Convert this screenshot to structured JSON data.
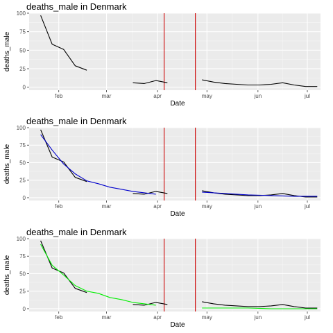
{
  "chart_data": [
    {
      "type": "line",
      "title": "deaths_male in Denmark",
      "xlabel": "Date",
      "ylabel": "deaths_male",
      "ylim": [
        -4,
        100
      ],
      "yticks": [
        0,
        25,
        50,
        75,
        100
      ],
      "xlim": [
        "2020-01-14",
        "2020-07-09"
      ],
      "xticks": [
        {
          "label": "feb",
          "date": "2020-02-01"
        },
        {
          "label": "mar",
          "date": "2020-03-01"
        },
        {
          "label": "apr",
          "date": "2020-04-01"
        },
        {
          "label": "may",
          "date": "2020-05-01"
        },
        {
          "label": "jun",
          "date": "2020-06-01"
        },
        {
          "label": "jul",
          "date": "2020-07-01"
        }
      ],
      "vlines": [
        "2020-04-05",
        "2020-04-24"
      ],
      "colors": {
        "observed": "#000000",
        "vline": "#cc0000"
      },
      "series": [
        {
          "values": [
            {
              "x": "2020-01-21",
              "y": 97
            },
            {
              "x": "2020-01-28",
              "y": 58
            },
            {
              "x": "2020-02-04",
              "y": 51
            },
            {
              "x": "2020-02-11",
              "y": 29
            },
            {
              "x": "2020-02-18",
              "y": 23
            }
          ]
        },
        {
          "values": [
            {
              "x": "2020-03-17",
              "y": 6
            },
            {
              "x": "2020-03-24",
              "y": 5
            },
            {
              "x": "2020-03-31",
              "y": 9
            },
            {
              "x": "2020-04-07",
              "y": 6
            }
          ]
        },
        {
          "values": [
            {
              "x": "2020-04-28",
              "y": 10
            },
            {
              "x": "2020-05-05",
              "y": 7
            },
            {
              "x": "2020-05-12",
              "y": 5
            },
            {
              "x": "2020-05-19",
              "y": 4
            },
            {
              "x": "2020-05-26",
              "y": 3
            },
            {
              "x": "2020-06-02",
              "y": 3
            },
            {
              "x": "2020-06-09",
              "y": 4
            },
            {
              "x": "2020-06-16",
              "y": 6
            },
            {
              "x": "2020-06-23",
              "y": 3
            },
            {
              "x": "2020-06-30",
              "y": 1
            },
            {
              "x": "2020-07-07",
              "y": 1
            }
          ]
        }
      ]
    },
    {
      "type": "line",
      "title": "deaths_male in Denmark",
      "xlabel": "Date",
      "ylabel": "deaths_male",
      "ylim": [
        -4,
        100
      ],
      "yticks": [
        0,
        25,
        50,
        75,
        100
      ],
      "xlim": [
        "2020-01-14",
        "2020-07-09"
      ],
      "xticks": [
        {
          "label": "feb",
          "date": "2020-02-01"
        },
        {
          "label": "mar",
          "date": "2020-03-01"
        },
        {
          "label": "apr",
          "date": "2020-04-01"
        },
        {
          "label": "may",
          "date": "2020-05-01"
        },
        {
          "label": "jun",
          "date": "2020-06-01"
        },
        {
          "label": "jul",
          "date": "2020-07-01"
        }
      ],
      "vlines": [
        "2020-04-05",
        "2020-04-24"
      ],
      "colors": {
        "observed": "#000000",
        "fit": "#0000cc",
        "vline": "#cc0000"
      },
      "series": [
        {
          "values": [
            {
              "x": "2020-01-21",
              "y": 97
            },
            {
              "x": "2020-01-28",
              "y": 58
            },
            {
              "x": "2020-02-04",
              "y": 51
            },
            {
              "x": "2020-02-11",
              "y": 29
            },
            {
              "x": "2020-02-18",
              "y": 23
            }
          ]
        },
        {
          "values": [
            {
              "x": "2020-03-17",
              "y": 6
            },
            {
              "x": "2020-03-24",
              "y": 5
            },
            {
              "x": "2020-03-31",
              "y": 9
            },
            {
              "x": "2020-04-07",
              "y": 6
            }
          ]
        },
        {
          "values": [
            {
              "x": "2020-04-28",
              "y": 10
            },
            {
              "x": "2020-05-05",
              "y": 7
            },
            {
              "x": "2020-05-12",
              "y": 5
            },
            {
              "x": "2020-05-19",
              "y": 4
            },
            {
              "x": "2020-05-26",
              "y": 3
            },
            {
              "x": "2020-06-02",
              "y": 3
            },
            {
              "x": "2020-06-09",
              "y": 4
            },
            {
              "x": "2020-06-16",
              "y": 6
            },
            {
              "x": "2020-06-23",
              "y": 3
            },
            {
              "x": "2020-06-30",
              "y": 1
            },
            {
              "x": "2020-07-07",
              "y": 1
            }
          ]
        },
        {
          "role": "fit",
          "values": [
            {
              "x": "2020-01-21",
              "y": 90
            },
            {
              "x": "2020-01-28",
              "y": 68
            },
            {
              "x": "2020-02-04",
              "y": 48
            },
            {
              "x": "2020-02-11",
              "y": 34
            },
            {
              "x": "2020-02-18",
              "y": 24
            },
            {
              "x": "2020-02-25",
              "y": 20
            },
            {
              "x": "2020-03-03",
              "y": 15
            },
            {
              "x": "2020-03-10",
              "y": 12
            },
            {
              "x": "2020-03-17",
              "y": 9
            },
            {
              "x": "2020-03-24",
              "y": 7
            },
            {
              "x": "2020-03-31",
              "y": 5
            }
          ]
        },
        {
          "role": "fit",
          "values": [
            {
              "x": "2020-04-28",
              "y": 8
            },
            {
              "x": "2020-05-12",
              "y": 6
            },
            {
              "x": "2020-05-26",
              "y": 4
            },
            {
              "x": "2020-06-09",
              "y": 3
            },
            {
              "x": "2020-06-23",
              "y": 2
            },
            {
              "x": "2020-07-07",
              "y": 2
            }
          ]
        }
      ]
    },
    {
      "type": "line",
      "title": "deaths_male in Denmark",
      "xlabel": "Date",
      "ylabel": "deaths_male",
      "ylim": [
        -4,
        100
      ],
      "yticks": [
        0,
        25,
        50,
        75,
        100
      ],
      "xlim": [
        "2020-01-14",
        "2020-07-09"
      ],
      "xticks": [
        {
          "label": "feb",
          "date": "2020-02-01"
        },
        {
          "label": "mar",
          "date": "2020-03-01"
        },
        {
          "label": "apr",
          "date": "2020-04-01"
        },
        {
          "label": "may",
          "date": "2020-05-01"
        },
        {
          "label": "jun",
          "date": "2020-06-01"
        },
        {
          "label": "jul",
          "date": "2020-07-01"
        }
      ],
      "vlines": [
        "2020-04-05",
        "2020-04-24"
      ],
      "colors": {
        "observed": "#000000",
        "fit": "#00ee00",
        "vline": "#cc0000"
      },
      "series": [
        {
          "values": [
            {
              "x": "2020-01-21",
              "y": 97
            },
            {
              "x": "2020-01-28",
              "y": 58
            },
            {
              "x": "2020-02-04",
              "y": 51
            },
            {
              "x": "2020-02-11",
              "y": 29
            },
            {
              "x": "2020-02-18",
              "y": 23
            }
          ]
        },
        {
          "values": [
            {
              "x": "2020-03-17",
              "y": 6
            },
            {
              "x": "2020-03-24",
              "y": 5
            },
            {
              "x": "2020-03-31",
              "y": 9
            },
            {
              "x": "2020-04-07",
              "y": 6
            }
          ]
        },
        {
          "values": [
            {
              "x": "2020-04-28",
              "y": 10
            },
            {
              "x": "2020-05-05",
              "y": 7
            },
            {
              "x": "2020-05-12",
              "y": 5
            },
            {
              "x": "2020-05-19",
              "y": 4
            },
            {
              "x": "2020-05-26",
              "y": 3
            },
            {
              "x": "2020-06-02",
              "y": 3
            },
            {
              "x": "2020-06-09",
              "y": 4
            },
            {
              "x": "2020-06-16",
              "y": 6
            },
            {
              "x": "2020-06-23",
              "y": 3
            },
            {
              "x": "2020-06-30",
              "y": 1
            },
            {
              "x": "2020-07-07",
              "y": 1
            }
          ]
        },
        {
          "role": "fit",
          "values": [
            {
              "x": "2020-01-21",
              "y": 92
            },
            {
              "x": "2020-01-28",
              "y": 62
            },
            {
              "x": "2020-02-04",
              "y": 48
            },
            {
              "x": "2020-02-11",
              "y": 33
            },
            {
              "x": "2020-02-18",
              "y": 25
            },
            {
              "x": "2020-02-25",
              "y": 22
            },
            {
              "x": "2020-03-03",
              "y": 16
            },
            {
              "x": "2020-03-10",
              "y": 13
            },
            {
              "x": "2020-03-17",
              "y": 9
            },
            {
              "x": "2020-03-24",
              "y": 7
            },
            {
              "x": "2020-03-31",
              "y": 5
            }
          ]
        },
        {
          "role": "fit",
          "values": [
            {
              "x": "2020-04-28",
              "y": 1
            },
            {
              "x": "2020-05-12",
              "y": 1
            },
            {
              "x": "2020-05-26",
              "y": 1
            },
            {
              "x": "2020-06-09",
              "y": 0
            },
            {
              "x": "2020-06-23",
              "y": 0
            },
            {
              "x": "2020-07-07",
              "y": 0
            }
          ]
        }
      ]
    }
  ]
}
